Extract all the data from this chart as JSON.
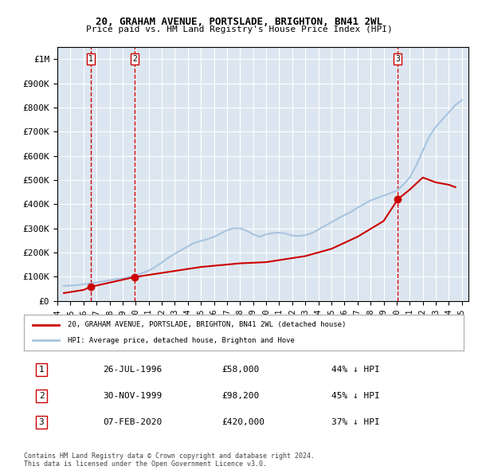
{
  "title": "20, GRAHAM AVENUE, PORTSLADE, BRIGHTON, BN41 2WL",
  "subtitle": "Price paid vs. HM Land Registry's House Price Index (HPI)",
  "ylabel": "",
  "background_color": "#ffffff",
  "plot_bg_color": "#dce6f0",
  "grid_color": "#ffffff",
  "hpi_color": "#a8c4e0",
  "price_color": "#cc0000",
  "ylim": [
    0,
    1050000
  ],
  "yticks": [
    0,
    100000,
    200000,
    300000,
    400000,
    500000,
    600000,
    700000,
    800000,
    900000,
    1000000
  ],
  "ytick_labels": [
    "£0",
    "£100K",
    "£200K",
    "£300K",
    "£400K",
    "£500K",
    "£600K",
    "£700K",
    "£800K",
    "£900K",
    "£1M"
  ],
  "sale_dates_num": [
    1996.57,
    1999.92,
    2020.09
  ],
  "sale_prices": [
    58000,
    98200,
    420000
  ],
  "sale_labels": [
    "1",
    "2",
    "3"
  ],
  "legend_price_label": "20, GRAHAM AVENUE, PORTSLADE, BRIGHTON, BN41 2WL (detached house)",
  "legend_hpi_label": "HPI: Average price, detached house, Brighton and Hove",
  "table_data": [
    [
      "1",
      "26-JUL-1996",
      "£58,000",
      "44% ↓ HPI"
    ],
    [
      "2",
      "30-NOV-1999",
      "£98,200",
      "45% ↓ HPI"
    ],
    [
      "3",
      "07-FEB-2020",
      "£420,000",
      "37% ↓ HPI"
    ]
  ],
  "footer": "Contains HM Land Registry data © Crown copyright and database right 2024.\nThis data is licensed under the Open Government Licence v3.0.",
  "hpi_years": [
    1994.5,
    1995.0,
    1995.5,
    1996.0,
    1996.5,
    1997.0,
    1997.5,
    1998.0,
    1998.5,
    1999.0,
    1999.5,
    2000.0,
    2000.5,
    2001.0,
    2001.5,
    2002.0,
    2002.5,
    2003.0,
    2003.5,
    2004.0,
    2004.5,
    2005.0,
    2005.5,
    2006.0,
    2006.5,
    2007.0,
    2007.5,
    2008.0,
    2008.5,
    2009.0,
    2009.5,
    2010.0,
    2010.5,
    2011.0,
    2011.5,
    2012.0,
    2012.5,
    2013.0,
    2013.5,
    2014.0,
    2014.5,
    2015.0,
    2015.5,
    2016.0,
    2016.5,
    2017.0,
    2017.5,
    2018.0,
    2018.5,
    2019.0,
    2019.5,
    2020.0,
    2020.5,
    2021.0,
    2021.5,
    2022.0,
    2022.5,
    2023.0,
    2023.5,
    2024.0,
    2024.5,
    2025.0
  ],
  "hpi_values": [
    62000,
    63000,
    65000,
    68000,
    72000,
    76000,
    80000,
    85000,
    90000,
    93000,
    98000,
    105000,
    115000,
    125000,
    140000,
    158000,
    178000,
    195000,
    210000,
    225000,
    240000,
    248000,
    255000,
    265000,
    278000,
    292000,
    300000,
    300000,
    290000,
    275000,
    265000,
    275000,
    280000,
    282000,
    278000,
    270000,
    268000,
    272000,
    280000,
    295000,
    310000,
    325000,
    340000,
    355000,
    368000,
    385000,
    400000,
    415000,
    425000,
    435000,
    445000,
    455000,
    480000,
    510000,
    560000,
    620000,
    680000,
    720000,
    750000,
    780000,
    810000,
    830000
  ],
  "price_years": [
    1994.5,
    1996.0,
    1996.57,
    1999.92,
    2005.0,
    2008.0,
    2010.0,
    2013.0,
    2015.0,
    2017.0,
    2019.0,
    2020.09,
    2021.0,
    2022.0,
    2023.0,
    2024.0,
    2024.5
  ],
  "price_values": [
    32000,
    45000,
    58000,
    98200,
    140000,
    155000,
    160000,
    185000,
    215000,
    265000,
    330000,
    420000,
    460000,
    510000,
    490000,
    480000,
    470000
  ],
  "vline_dates": [
    1996.57,
    1999.92,
    2020.09
  ],
  "xlim": [
    1994.0,
    2025.5
  ]
}
